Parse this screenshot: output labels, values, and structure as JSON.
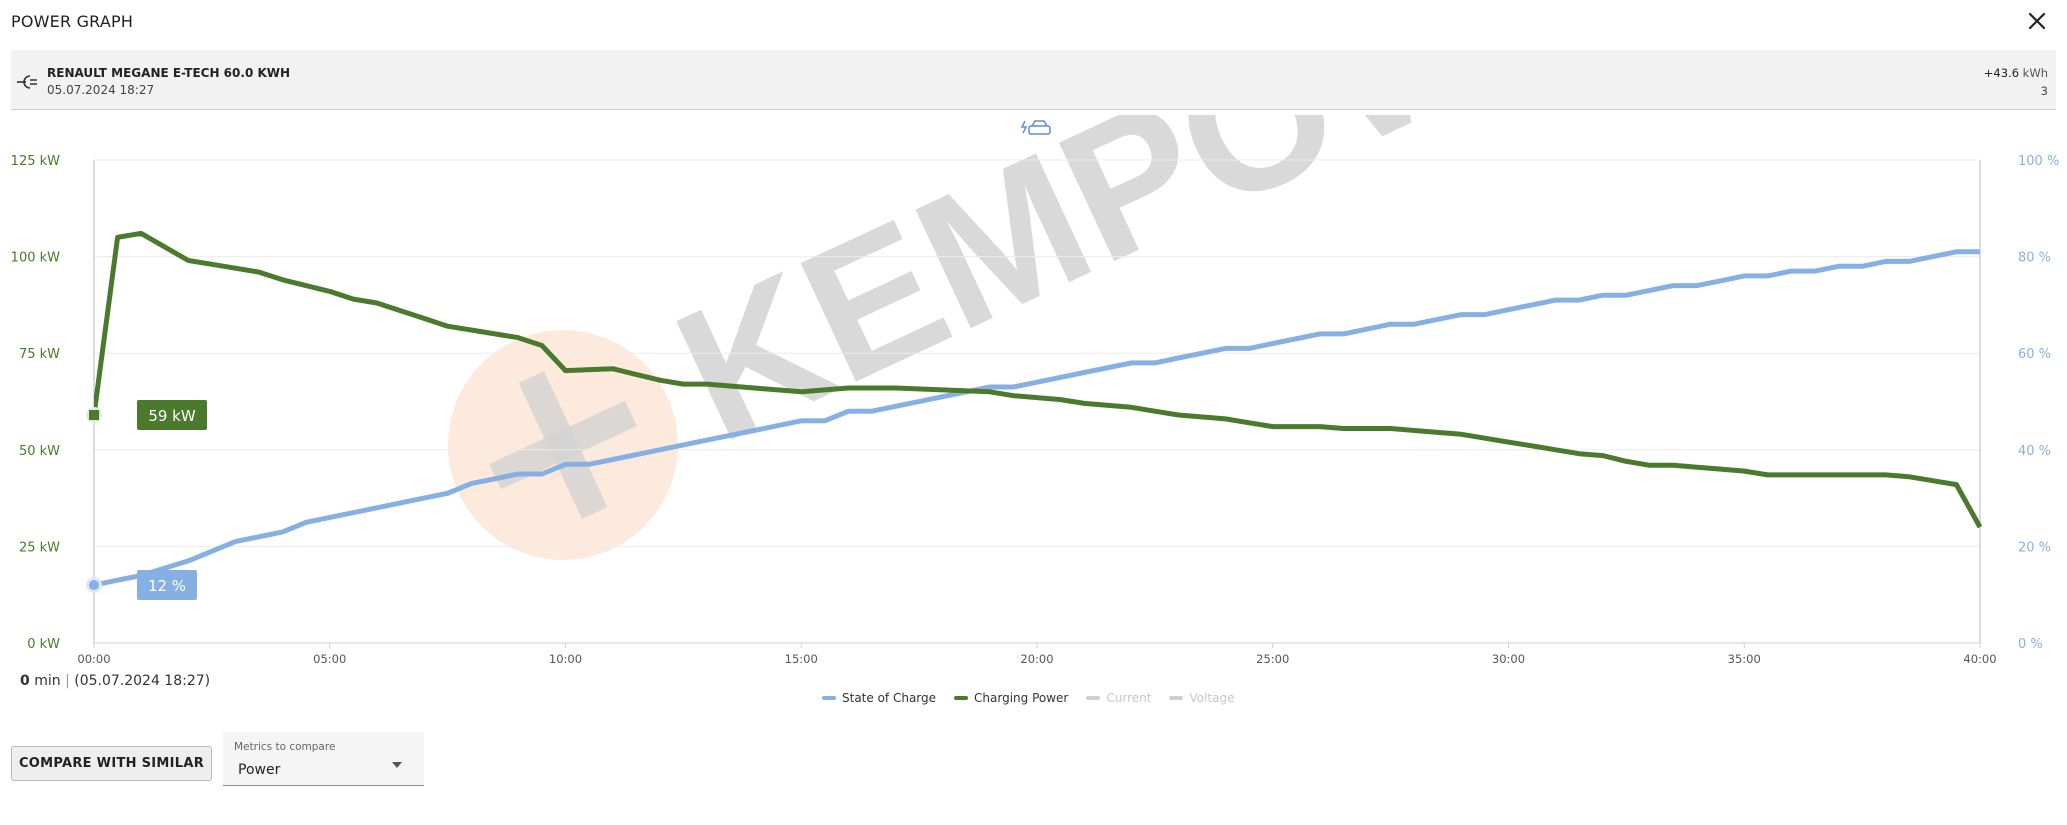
{
  "header": {
    "title": "POWER GRAPH",
    "close_icon": "close-icon"
  },
  "session": {
    "vehicle": "RENAULT MEGANE E-TECH 60.0 KWH",
    "datetime": "05.07.2024 18:27",
    "energy_value": "+43.6",
    "energy_unit": "kWh",
    "count": "3",
    "icon": "plug-icon"
  },
  "chart_header_icon": "charging-car-icon",
  "watermark": "KEMPOWER",
  "chart_data": {
    "type": "line",
    "xlabel": "",
    "x_ticks": [
      "00:00",
      "05:00",
      "10:00",
      "15:00",
      "20:00",
      "25:00",
      "30:00",
      "35:00",
      "40:00"
    ],
    "xlim": [
      0,
      40
    ],
    "y_left_ticks": [
      "125 kW",
      "100 kW",
      "75 kW",
      "50 kW",
      "25 kW",
      "0 kW"
    ],
    "y_left_range": [
      0,
      125
    ],
    "y_right_ticks": [
      "100 %",
      "80 %",
      "60 %",
      "40 %",
      "20 %",
      "0 %"
    ],
    "y_right_range": [
      0,
      100
    ],
    "grid": true,
    "legend_position": "bottom-center",
    "series": [
      {
        "name": "State of Charge",
        "axis": "right",
        "color": "#86b0e3",
        "x": [
          0,
          0.5,
          1,
          2,
          3,
          4,
          4.5,
          5,
          6,
          7,
          7.5,
          8,
          9,
          9.5,
          10,
          10.5,
          11,
          12,
          13,
          14,
          15,
          15.5,
          16,
          16.5,
          17,
          18,
          19,
          19.5,
          20,
          21,
          22,
          22.5,
          23,
          24,
          24.5,
          25,
          26,
          26.5,
          27,
          27.5,
          28,
          29,
          29.5,
          30,
          31,
          31.5,
          32,
          32.5,
          33,
          33.5,
          34,
          34.5,
          35,
          35.5,
          36,
          36.5,
          37,
          37.5,
          38,
          38.5,
          39,
          39.5,
          40
        ],
        "values": [
          12,
          13,
          14,
          17,
          21,
          23,
          25,
          26,
          28,
          30,
          31,
          33,
          35,
          35,
          37,
          37,
          38,
          40,
          42,
          44,
          46,
          46,
          48,
          48,
          49,
          51,
          53,
          53,
          54,
          56,
          58,
          58,
          59,
          61,
          61,
          62,
          64,
          64,
          65,
          66,
          66,
          68,
          68,
          69,
          71,
          71,
          72,
          72,
          73,
          74,
          74,
          75,
          76,
          76,
          77,
          77,
          78,
          78,
          79,
          79,
          80,
          81,
          81
        ]
      },
      {
        "name": "Charging Power",
        "axis": "left",
        "color": "#4b7a2c",
        "x": [
          0,
          0.5,
          1,
          2,
          2.5,
          3,
          3.5,
          4,
          5,
          5.5,
          6,
          7,
          7.5,
          8,
          8.5,
          9,
          9.5,
          10,
          11,
          12,
          12.5,
          13,
          14,
          15,
          15.5,
          16,
          16.5,
          17,
          18,
          19,
          19.5,
          20,
          20.5,
          21,
          22,
          22.5,
          23,
          24,
          24.5,
          25,
          26,
          26.5,
          27,
          27.5,
          28,
          29,
          29.5,
          30,
          30.5,
          31,
          31.5,
          32,
          32.5,
          33,
          33.5,
          34,
          34.5,
          35,
          35.5,
          36,
          36.5,
          37,
          37.5,
          38,
          38.5,
          39,
          39.5,
          40
        ],
        "values": [
          59,
          105,
          106,
          99,
          98,
          97,
          96,
          94,
          91,
          89,
          88,
          84,
          82,
          81,
          80,
          79,
          77,
          70.5,
          71,
          68,
          67,
          67,
          66,
          65,
          65.5,
          66,
          66,
          66,
          65.5,
          65,
          64,
          63.5,
          63,
          62,
          61,
          60,
          59,
          58,
          57,
          56,
          56,
          55.5,
          55.5,
          55.5,
          55,
          54,
          53,
          52,
          51,
          50,
          49,
          48.5,
          47,
          46,
          46,
          45.5,
          45,
          44.5,
          43.5,
          43.5,
          43.5,
          43.5,
          43.5,
          43.5,
          43,
          42,
          41,
          30
        ]
      },
      {
        "name": "Current",
        "active": false,
        "color": "#d0d0d0"
      },
      {
        "name": "Voltage",
        "active": false,
        "color": "#d0d0d0"
      }
    ],
    "tooltips": {
      "power": "59 kW",
      "soc": "12 %"
    }
  },
  "readout": {
    "value": "0",
    "unit": "min",
    "separator": "|",
    "datetime": "(05.07.2024 18:27)"
  },
  "legend": [
    {
      "label": "State of Charge",
      "color": "#86b0e3",
      "active": true
    },
    {
      "label": "Charging Power",
      "color": "#4b7a2c",
      "active": true
    },
    {
      "label": "Current",
      "color": "#d0d0d0",
      "active": false
    },
    {
      "label": "Voltage",
      "color": "#d0d0d0",
      "active": false
    }
  ],
  "footer": {
    "compare_button": "COMPARE WITH SIMILAR",
    "metrics_caption": "Metrics to compare",
    "metrics_value": "Power"
  }
}
